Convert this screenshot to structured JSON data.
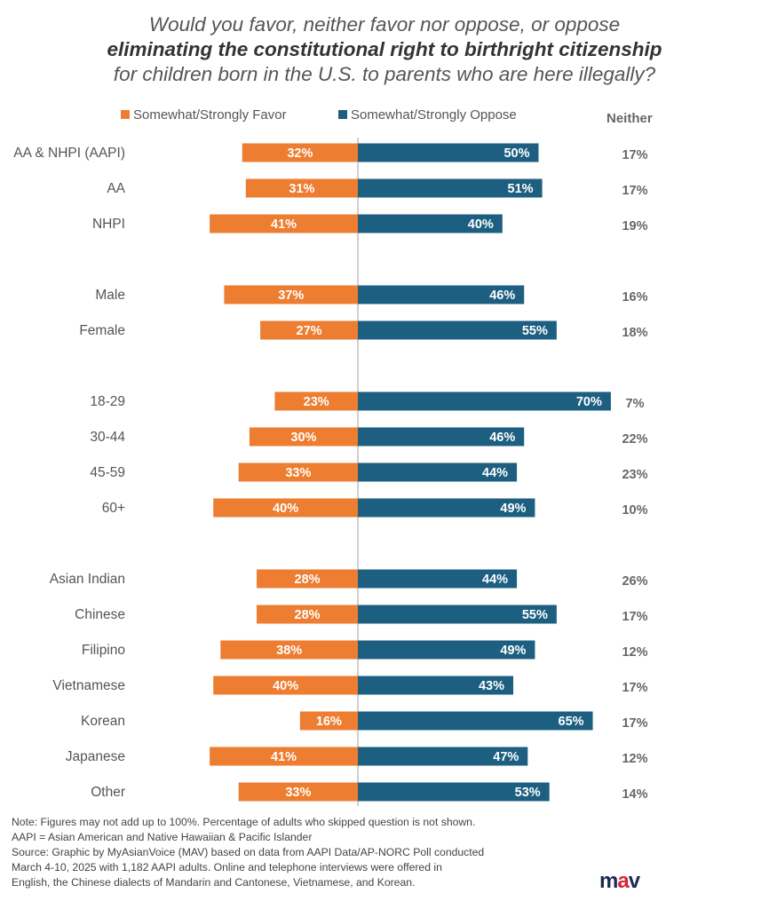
{
  "title": {
    "line1": "Would you favor, neither favor nor oppose, or oppose",
    "line2": "eliminating the constitutional right to birthright citizenship",
    "line3": "for children born in the U.S. to parents who are here illegally?"
  },
  "legend": {
    "favor": "Somewhat/Strongly Favor",
    "oppose": "Somewhat/Strongly Oppose",
    "neither": "Neither"
  },
  "colors": {
    "favor": "#ED7D31",
    "oppose": "#1D5F80",
    "axis": "#BFBFBF"
  },
  "chart_data": {
    "type": "bar",
    "orientation": "diverging-horizontal",
    "legend_position": "top",
    "grid": false,
    "groups": [
      {
        "categories": [
          "AA & NHPI (AAPI)",
          "AA",
          "NHPI"
        ]
      },
      {
        "categories": [
          "Male",
          "Female"
        ]
      },
      {
        "categories": [
          "18-29",
          "30-44",
          "45-59",
          "60+"
        ]
      },
      {
        "categories": [
          "Asian Indian",
          "Chinese",
          "Filipino",
          "Vietnamese",
          "Korean",
          "Japanese",
          "Other"
        ]
      }
    ],
    "categories": [
      "AA & NHPI (AAPI)",
      "AA",
      "NHPI",
      "Male",
      "Female",
      "18-29",
      "30-44",
      "45-59",
      "60+",
      "Asian Indian",
      "Chinese",
      "Filipino",
      "Vietnamese",
      "Korean",
      "Japanese",
      "Other"
    ],
    "series": [
      {
        "name": "Somewhat/Strongly Favor",
        "values": [
          32,
          31,
          41,
          37,
          27,
          23,
          30,
          33,
          40,
          28,
          28,
          38,
          40,
          16,
          41,
          33
        ]
      },
      {
        "name": "Somewhat/Strongly Oppose",
        "values": [
          50,
          51,
          40,
          46,
          55,
          70,
          46,
          44,
          49,
          44,
          55,
          49,
          43,
          65,
          47,
          53
        ]
      },
      {
        "name": "Neither",
        "values": [
          17,
          17,
          19,
          16,
          18,
          7,
          22,
          23,
          10,
          26,
          17,
          12,
          17,
          17,
          12,
          14
        ]
      }
    ],
    "value_suffix": "%"
  },
  "notes": {
    "line1": "Note: Figures may not add up to 100%. Percentage of adults who skipped  question is not shown.",
    "line2": "AAPI = Asian American and Native Hawaiian & Pacific Islander",
    "line3": "Source:  Graphic by MyAsianVoice (MAV) based on data from AAPI Data/AP-NORC Poll conducted",
    "line4": "March 4-10, 2025 with 1,182 AAPI adults. Online and  telephone interviews were offered in",
    "line5": "English, the Chinese dialects of Mandarin and Cantonese, Vietnamese, and Korean."
  },
  "logo": {
    "m": "m",
    "a": "a",
    "v": "v"
  }
}
